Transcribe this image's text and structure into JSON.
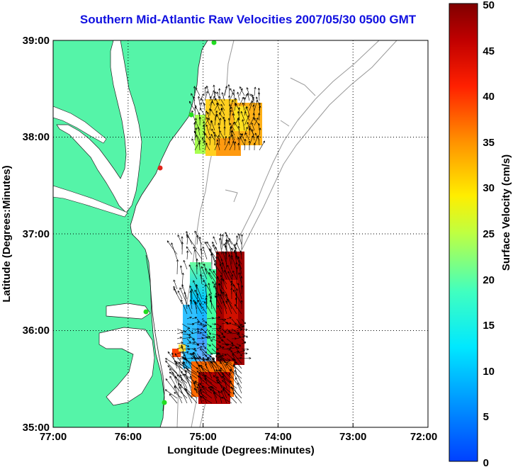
{
  "title": "Southern Mid-Atlantic Raw Velocities 2007/05/30 0500 GMT",
  "x_axis": {
    "label": "Longitude (Degrees:Minutes)",
    "ticks": [
      "77:00",
      "76:00",
      "75:00",
      "74:00",
      "73:00",
      "72:00"
    ]
  },
  "y_axis": {
    "label": "Latitude (Degrees:Minutes)",
    "ticks": [
      "39:00",
      "38:00",
      "37:00",
      "36:00",
      "35:00"
    ]
  },
  "colorbar": {
    "label": "Surface Velocity (cm/s)",
    "ticks": [
      "50",
      "45",
      "40",
      "35",
      "30",
      "25",
      "20",
      "15",
      "10",
      "5",
      "0"
    ]
  },
  "colors": {
    "land": "#55f4a8",
    "title": "#1010e0",
    "station": "#22dd22",
    "station_alt": "#e0251a"
  }
}
